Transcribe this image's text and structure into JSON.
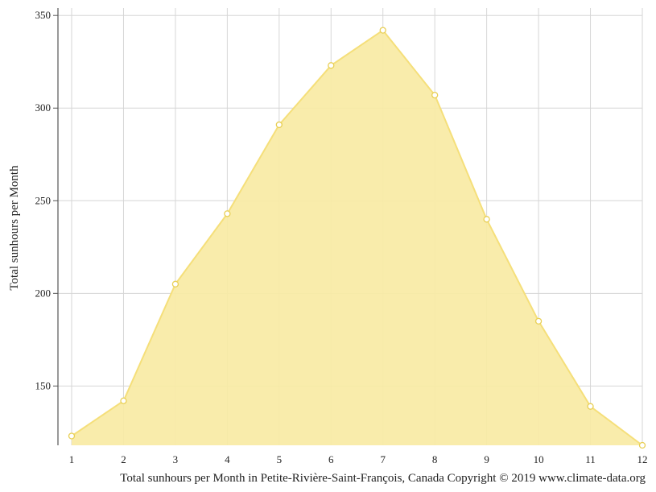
{
  "chart_data": {
    "type": "area",
    "title": "",
    "xlabel": "",
    "ylabel": "Total sunhours per Month",
    "caption": "Total sunhours per Month in Petite-Rivière-Saint-François, Canada Copyright © 2019 www.climate-data.org",
    "x": [
      1,
      2,
      3,
      4,
      5,
      6,
      7,
      8,
      9,
      10,
      11,
      12
    ],
    "series": [
      {
        "values": [
          123,
          142,
          205,
          243,
          291,
          323,
          342,
          307,
          240,
          185,
          139,
          118
        ]
      }
    ],
    "xlim": [
      1,
      12
    ],
    "ylim": [
      118,
      354
    ],
    "yticks": [
      150,
      200,
      250,
      300,
      350
    ],
    "grid": true,
    "legend": "none",
    "colors": {
      "fill": "#f9eaa4",
      "line": "#f5df7a",
      "marker_edge": "#e8cf55",
      "grid": "#d6d6d6",
      "axis": "#555555"
    }
  }
}
